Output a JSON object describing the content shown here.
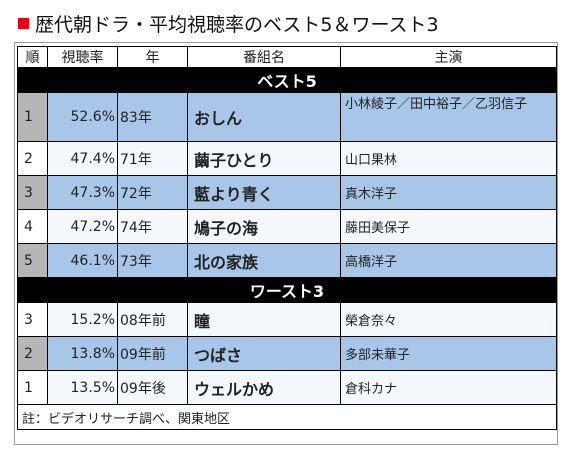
{
  "title": "歴代朝ドラ・平均視聴率のベスト5＆ワースト3",
  "headers": [
    "順",
    "視聴率",
    "年",
    "番組名",
    "主演"
  ],
  "best_label": "ベスト5",
  "worst_label": "ワースト3",
  "best": [
    {
      "rank": "1",
      "rating": "52.6%",
      "year": "83年",
      "program": "おしん",
      "cast": "小林綾子／田中裕子／乙羽信子"
    },
    {
      "rank": "2",
      "rating": "47.4%",
      "year": "71年",
      "program": "繭子ひとり",
      "cast": "山口果林"
    },
    {
      "rank": "3",
      "rating": "47.3%",
      "year": "72年",
      "program": "藍より青く",
      "cast": "真木洋子"
    },
    {
      "rank": "4",
      "rating": "47.2%",
      "year": "74年",
      "program": "鳩子の海",
      "cast": "藤田美保子"
    },
    {
      "rank": "5",
      "rating": "46.1%",
      "year": "73年",
      "program": "北の家族",
      "cast": "高橋洋子"
    }
  ],
  "worst": [
    {
      "rank": "3",
      "rating": "15.2%",
      "year": "08年前",
      "program": "瞳",
      "cast": "榮倉奈々"
    },
    {
      "rank": "2",
      "rating": "13.8%",
      "year": "09年前",
      "program": "つばさ",
      "cast": "多部未華子"
    },
    {
      "rank": "1",
      "rating": "13.5%",
      "year": "09年後",
      "program": "ウェルかめ",
      "cast": "倉科カナ"
    }
  ],
  "note": "註：ビデオリサーチ調べ、関東地区",
  "colors": {
    "row_blue": "#a8c7e8",
    "row_white": "#f4f8fc",
    "rank_gray": "#b6b6b6",
    "title_marker": "#e60012"
  }
}
